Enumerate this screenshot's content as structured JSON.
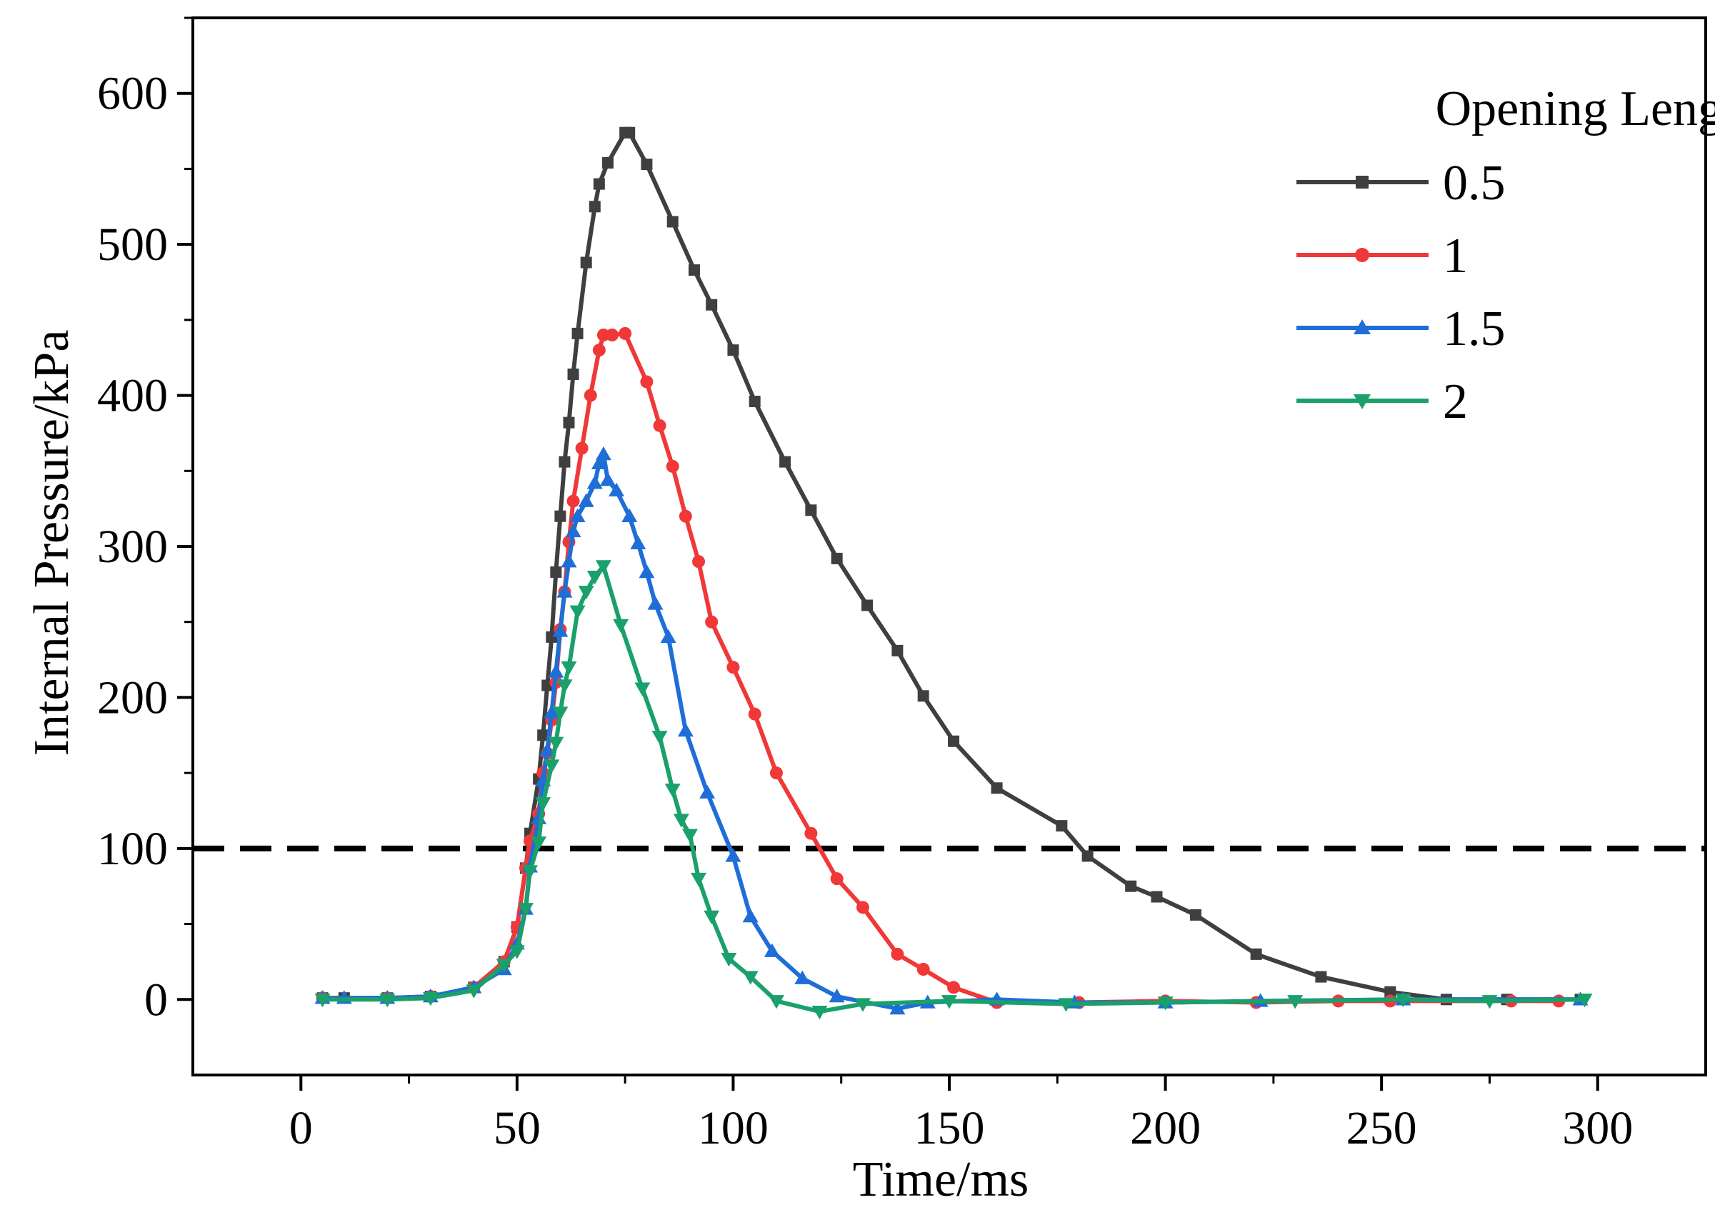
{
  "chart_data": {
    "type": "line",
    "title": "",
    "xlabel": "Time/ms",
    "ylabel": "Internal Pressure/kPa",
    "xlim": [
      -25,
      325
    ],
    "ylim": [
      -50,
      650
    ],
    "xticks": [
      0,
      50,
      100,
      150,
      200,
      250,
      300
    ],
    "yticks": [
      0,
      100,
      200,
      300,
      400,
      500,
      600
    ],
    "grid": false,
    "legend": {
      "title": "Opening Length/m",
      "position": "top-right"
    },
    "reference_line": {
      "y": 100,
      "style": "dashed",
      "color": "#000000"
    },
    "series": [
      {
        "name": "0.5",
        "color": "#3f3f3f",
        "marker": "square",
        "x": [
          5,
          10,
          20,
          30,
          40,
          47,
          50,
          52,
          53,
          55,
          56,
          57,
          58,
          59,
          60,
          61,
          62,
          63,
          64,
          66,
          68,
          69,
          71,
          75,
          76,
          80,
          86,
          91,
          95,
          100,
          105,
          112,
          118,
          124,
          131,
          138,
          144,
          151,
          161,
          176,
          182,
          192,
          198,
          207,
          221,
          236,
          252,
          265,
          279,
          296
        ],
        "y": [
          1,
          1,
          1,
          2,
          8,
          25,
          48,
          87,
          110,
          146,
          175,
          208,
          240,
          283,
          320,
          356,
          382,
          414,
          441,
          488,
          525,
          540,
          554,
          574,
          574,
          553,
          515,
          483,
          460,
          430,
          396,
          356,
          324,
          292,
          261,
          231,
          201,
          171,
          140,
          115,
          95,
          75,
          68,
          56,
          30,
          15,
          5,
          0,
          0,
          0
        ]
      },
      {
        "name": "1",
        "color": "#f03838",
        "marker": "circle",
        "x": [
          5,
          20,
          30,
          40,
          47,
          50,
          52,
          53,
          55,
          56,
          57,
          58,
          59,
          60,
          61,
          62,
          63,
          65,
          67,
          69,
          70,
          72,
          75,
          80,
          83,
          86,
          89,
          92,
          95,
          100,
          105,
          110,
          118,
          124,
          130,
          138,
          144,
          151,
          161,
          180,
          200,
          221,
          240,
          252,
          280,
          291
        ],
        "y": [
          1,
          1,
          2,
          8,
          25,
          48,
          87,
          105,
          123,
          150,
          163,
          185,
          210,
          245,
          270,
          303,
          330,
          365,
          400,
          430,
          440,
          440,
          441,
          409,
          380,
          353,
          320,
          290,
          250,
          220,
          189,
          150,
          110,
          80,
          61,
          30,
          20,
          8,
          -2,
          -2,
          -1,
          -2,
          -1,
          -1,
          -1,
          -1
        ]
      },
      {
        "name": "1.5",
        "color": "#1f6ed8",
        "marker": "triangle-up",
        "x": [
          5,
          10,
          20,
          30,
          40,
          47,
          50,
          52,
          53,
          55,
          56,
          57,
          58,
          59,
          60,
          61,
          62,
          63,
          64,
          66,
          68,
          69,
          70,
          71,
          73,
          76,
          78,
          80,
          82,
          85,
          89,
          94,
          100,
          104,
          109,
          116,
          124,
          138,
          145,
          161,
          179,
          200,
          222,
          255,
          296
        ],
        "y": [
          1,
          1,
          1,
          2,
          8,
          20,
          37,
          60,
          88,
          120,
          145,
          165,
          190,
          217,
          244,
          270,
          290,
          310,
          320,
          330,
          342,
          355,
          361,
          344,
          337,
          320,
          302,
          283,
          262,
          240,
          178,
          137,
          95,
          55,
          32,
          14,
          2,
          -6,
          -2,
          0,
          -2,
          -2,
          -1,
          0,
          0
        ]
      },
      {
        "name": "2",
        "color": "#1aa06b",
        "marker": "triangle-down",
        "x": [
          5,
          20,
          30,
          40,
          47,
          50,
          52,
          53,
          55,
          56,
          58,
          59,
          60,
          61,
          62,
          64,
          66,
          68,
          70,
          74,
          79,
          83,
          86,
          88,
          90,
          92,
          95,
          99,
          104,
          110,
          120,
          130,
          150,
          177,
          200,
          230,
          255,
          275,
          297
        ],
        "y": [
          0,
          0,
          1,
          6,
          23,
          32,
          60,
          85,
          104,
          130,
          155,
          170,
          190,
          208,
          220,
          257,
          270,
          280,
          287,
          248,
          206,
          174,
          139,
          119,
          109,
          80,
          55,
          27,
          15,
          -1,
          -8,
          -3,
          -1,
          -3,
          -2,
          -1,
          0,
          -1,
          0
        ]
      }
    ]
  }
}
